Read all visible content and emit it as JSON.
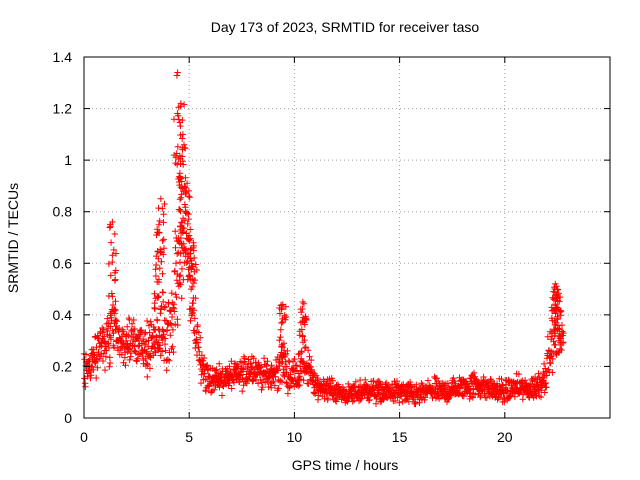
{
  "chart_data": {
    "type": "scatter",
    "title": "Day 173 of 2023, SRMTID for receiver taso",
    "xlabel": "GPS time / hours",
    "ylabel": "SRMTID / TECUs",
    "xlim": [
      0,
      25
    ],
    "ylim": [
      0,
      1.4
    ],
    "xticks": [
      0,
      5,
      10,
      15,
      20
    ],
    "xtick_labels": [
      "0",
      "5",
      "10",
      "15",
      "20"
    ],
    "yticks": [
      0,
      0.2,
      0.4,
      0.6,
      0.8,
      1.0,
      1.2,
      1.4
    ],
    "ytick_labels": [
      "0",
      "0.2",
      "0.4",
      "0.6",
      "0.8",
      "1",
      "1.2",
      "1.4"
    ],
    "grid": true,
    "marker": "+",
    "series": [
      {
        "name": "SRMTID",
        "color": "#ff0000",
        "profile_x": [
          0.0,
          0.3,
          0.6,
          0.9,
          1.2,
          1.4,
          1.6,
          2.0,
          2.4,
          2.8,
          3.2,
          3.6,
          3.9,
          4.2,
          4.5,
          4.8,
          5.0,
          5.3,
          5.6,
          6.0,
          6.5,
          7.0,
          7.5,
          8.0,
          8.5,
          9.0,
          9.4,
          9.8,
          10.2,
          10.5,
          11.0,
          11.5,
          12.0,
          12.5,
          13.0,
          13.5,
          14.0,
          14.5,
          15.0,
          15.5,
          16.0,
          16.5,
          17.0,
          17.5,
          18.0,
          18.5,
          19.0,
          19.5,
          20.0,
          20.5,
          21.0,
          21.5,
          21.8,
          22.0,
          22.3,
          22.5,
          22.8
        ],
        "profile_center": [
          0.18,
          0.2,
          0.25,
          0.3,
          0.32,
          0.4,
          0.3,
          0.28,
          0.3,
          0.26,
          0.3,
          0.32,
          0.33,
          0.38,
          0.55,
          0.7,
          0.55,
          0.35,
          0.2,
          0.15,
          0.15,
          0.16,
          0.17,
          0.2,
          0.17,
          0.16,
          0.22,
          0.16,
          0.18,
          0.22,
          0.12,
          0.12,
          0.1,
          0.09,
          0.1,
          0.11,
          0.1,
          0.1,
          0.1,
          0.09,
          0.09,
          0.11,
          0.1,
          0.11,
          0.12,
          0.13,
          0.12,
          0.11,
          0.1,
          0.12,
          0.11,
          0.12,
          0.15,
          0.2,
          0.3,
          0.32,
          0.3
        ],
        "profile_spread": [
          0.08,
          0.08,
          0.1,
          0.1,
          0.12,
          0.18,
          0.1,
          0.1,
          0.1,
          0.1,
          0.12,
          0.12,
          0.15,
          0.2,
          0.3,
          0.2,
          0.2,
          0.15,
          0.1,
          0.06,
          0.06,
          0.06,
          0.07,
          0.08,
          0.06,
          0.06,
          0.12,
          0.06,
          0.08,
          0.12,
          0.05,
          0.05,
          0.04,
          0.04,
          0.05,
          0.05,
          0.05,
          0.04,
          0.05,
          0.05,
          0.05,
          0.05,
          0.05,
          0.05,
          0.05,
          0.06,
          0.05,
          0.05,
          0.05,
          0.05,
          0.05,
          0.06,
          0.07,
          0.09,
          0.12,
          0.1,
          0.06
        ],
        "peaks": [
          {
            "x": 1.35,
            "y": 0.76
          },
          {
            "x": 3.5,
            "y": 0.72
          },
          {
            "x": 3.65,
            "y": 0.85
          },
          {
            "x": 4.45,
            "y": 1.34
          },
          {
            "x": 4.6,
            "y": 1.22
          },
          {
            "x": 4.7,
            "y": 1.1
          },
          {
            "x": 4.9,
            "y": 0.91
          },
          {
            "x": 5.2,
            "y": 0.68
          },
          {
            "x": 9.45,
            "y": 0.44
          },
          {
            "x": 10.4,
            "y": 0.45
          },
          {
            "x": 22.4,
            "y": 0.52
          },
          {
            "x": 22.5,
            "y": 0.47
          }
        ]
      }
    ]
  }
}
